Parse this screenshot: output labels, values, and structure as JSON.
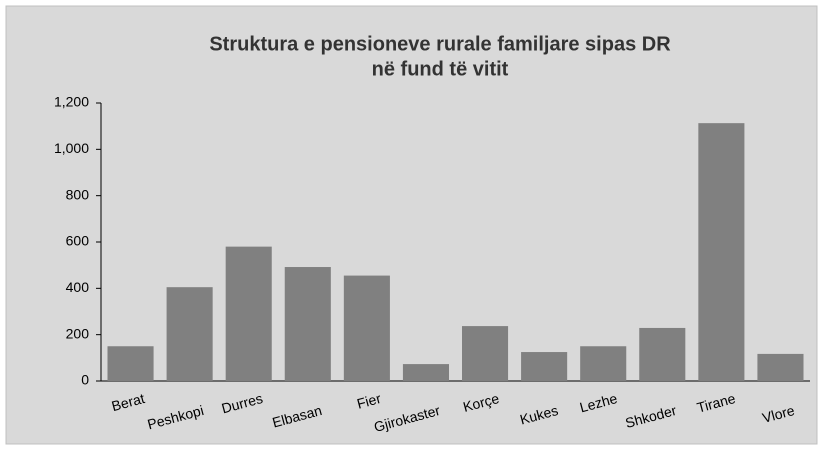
{
  "chart_data": {
    "type": "bar",
    "title": "Struktura e pensioneve rurale familjare sipas DR",
    "subtitle": "në fund të vitit",
    "categories": [
      "Berat",
      "Peshkopi",
      "Durres",
      "Elbasan",
      "Fier",
      "Gjirokaster",
      "Korçe",
      "Kukes",
      "Lezhe",
      "Shkoder",
      "Tirane",
      "Vlore"
    ],
    "values": [
      150,
      405,
      580,
      492,
      455,
      73,
      237,
      125,
      150,
      229,
      1113,
      117
    ],
    "color": "#808080",
    "ylim": [
      0,
      1200
    ],
    "yticks": [
      0,
      200,
      400,
      600,
      800,
      {
        "value": 1000,
        "label": "1,000"
      },
      {
        "value": 1200,
        "label": "1,200"
      }
    ],
    "grid": false
  }
}
